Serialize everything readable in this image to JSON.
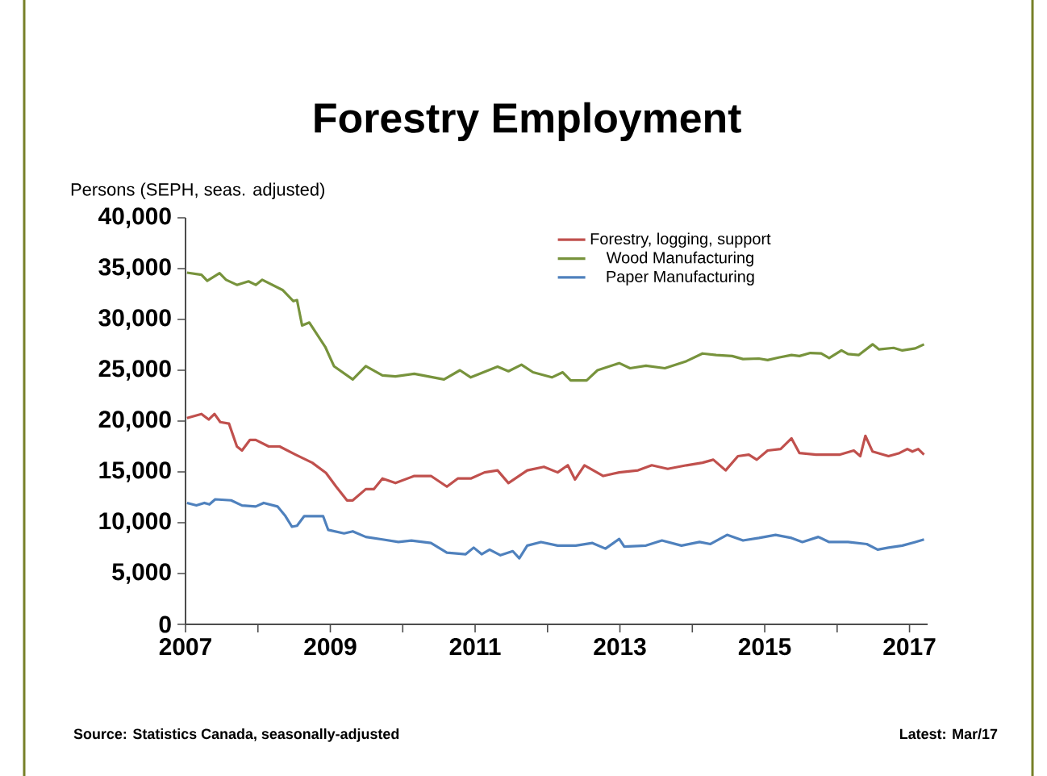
{
  "chart_data": {
    "type": "line",
    "title": "Forestry Employment",
    "ylabel": "Persons (SEPH, seas. adjusted)",
    "annotations": [
      "Source:  Statistics Canada, seasonally-adjusted",
      "Latest: Mar/17"
    ],
    "xlim": [
      2007,
      2017.25
    ],
    "ylim": [
      0,
      40000
    ],
    "xticks": [
      2007,
      {
        "value": 2008,
        "label": null
      },
      2009,
      {
        "value": 2010,
        "label": null
      },
      2011,
      {
        "value": 2012,
        "label": null
      },
      2013,
      {
        "value": 2014,
        "label": null
      },
      2015,
      {
        "value": 2016,
        "label": null
      },
      2017
    ],
    "yticks": [
      {
        "value": 0,
        "label": "0"
      },
      {
        "value": 5000,
        "label": "5,000"
      },
      {
        "value": 10000,
        "label": "10,000"
      },
      {
        "value": 15000,
        "label": "15,000"
      },
      {
        "value": 20000,
        "label": "20,000"
      },
      {
        "value": 25000,
        "label": "25,000"
      },
      {
        "value": 30000,
        "label": "30,000"
      },
      {
        "value": 35000,
        "label": "35,000"
      },
      {
        "value": 40000,
        "label": "40,000"
      }
    ],
    "grid": false,
    "legend": "top right",
    "line_style": "solid",
    "series": [
      {
        "name": "Forestry, logging, support",
        "color": "#c0504d",
        "x": [
          2007.02,
          2007.22,
          2007.32,
          2007.4,
          2007.48,
          2007.6,
          2007.71,
          2007.78,
          2007.89,
          2007.97,
          2008.15,
          2008.3,
          2008.52,
          2008.75,
          2008.94,
          2009.08,
          2009.23,
          2009.31,
          2009.49,
          2009.6,
          2009.72,
          2009.9,
          2010.16,
          2010.39,
          2010.61,
          2010.76,
          2010.94,
          2011.13,
          2011.31,
          2011.46,
          2011.72,
          2011.95,
          2012.14,
          2012.28,
          2012.38,
          2012.51,
          2012.77,
          2012.99,
          2013.25,
          2013.44,
          2013.66,
          2013.92,
          2014.14,
          2014.29,
          2014.46,
          2014.63,
          2014.78,
          2014.89,
          2015.04,
          2015.22,
          2015.37,
          2015.48,
          2015.71,
          2016.04,
          2016.23,
          2016.32,
          2016.39,
          2016.49,
          2016.71,
          2016.86,
          2016.97,
          2017.04,
          2017.12,
          2017.2
        ],
        "values": [
          20300,
          20700,
          20150,
          20700,
          19900,
          19750,
          17500,
          17100,
          18150,
          18150,
          17500,
          17500,
          16700,
          15900,
          14900,
          13550,
          12200,
          12200,
          13300,
          13300,
          14350,
          13900,
          14600,
          14600,
          13550,
          14350,
          14350,
          14950,
          15150,
          13900,
          15150,
          15500,
          14950,
          15650,
          14250,
          15650,
          14600,
          14950,
          15150,
          15650,
          15300,
          15650,
          15900,
          16200,
          15150,
          16550,
          16700,
          16200,
          17100,
          17250,
          18300,
          16850,
          16700,
          16700,
          17100,
          16550,
          18550,
          17000,
          16550,
          16850,
          17250,
          17000,
          17250,
          16700
        ]
      },
      {
        "name": "Wood Manufacturing",
        "color": "#77933c",
        "x": [
          2007.02,
          2007.22,
          2007.3,
          2007.47,
          2007.56,
          2007.71,
          2007.87,
          2007.97,
          2008.06,
          2008.34,
          2008.49,
          2008.54,
          2008.61,
          2008.71,
          2008.93,
          2009.05,
          2009.31,
          2009.49,
          2009.72,
          2009.9,
          2010.16,
          2010.57,
          2010.79,
          2010.94,
          2011.31,
          2011.46,
          2011.64,
          2011.8,
          2012.06,
          2012.21,
          2012.32,
          2012.54,
          2012.69,
          2012.99,
          2013.14,
          2013.36,
          2013.62,
          2013.92,
          2014.14,
          2014.33,
          2014.55,
          2014.7,
          2014.92,
          2015.04,
          2015.19,
          2015.37,
          2015.48,
          2015.63,
          2015.78,
          2015.89,
          2016.06,
          2016.15,
          2016.3,
          2016.49,
          2016.58,
          2016.78,
          2016.9,
          2017.08,
          2017.2
        ],
        "values": [
          34600,
          34400,
          33800,
          34550,
          33900,
          33400,
          33750,
          33400,
          33900,
          32900,
          31800,
          31900,
          29400,
          29700,
          27300,
          25400,
          24100,
          25400,
          24500,
          24400,
          24650,
          24100,
          25000,
          24300,
          25350,
          24900,
          25550,
          24800,
          24300,
          24800,
          24000,
          24000,
          25000,
          25700,
          25200,
          25450,
          25200,
          25900,
          26650,
          26500,
          26400,
          26100,
          26150,
          26000,
          26250,
          26500,
          26400,
          26700,
          26650,
          26200,
          26950,
          26600,
          26500,
          27550,
          27050,
          27200,
          26950,
          27150,
          27550
        ]
      },
      {
        "name": "Paper Manufacturing",
        "color": "#4f81bd",
        "x": [
          2007.02,
          2007.15,
          2007.26,
          2007.33,
          2007.41,
          2007.63,
          2007.78,
          2007.97,
          2008.08,
          2008.27,
          2008.38,
          2008.47,
          2008.54,
          2008.64,
          2008.9,
          2008.97,
          2009.19,
          2009.31,
          2009.49,
          2009.72,
          2009.94,
          2010.12,
          2010.39,
          2010.61,
          2010.87,
          2010.98,
          2011.09,
          2011.2,
          2011.35,
          2011.52,
          2011.61,
          2011.72,
          2011.91,
          2012.14,
          2012.39,
          2012.62,
          2012.8,
          2012.99,
          2013.06,
          2013.36,
          2013.58,
          2013.85,
          2014.1,
          2014.25,
          2014.48,
          2014.7,
          2014.92,
          2015.15,
          2015.37,
          2015.52,
          2015.74,
          2015.89,
          2016.15,
          2016.41,
          2016.56,
          2016.71,
          2016.9,
          2017.08,
          2017.2
        ],
        "values": [
          11950,
          11700,
          11950,
          11800,
          12300,
          12200,
          11700,
          11600,
          11950,
          11600,
          10650,
          9600,
          9700,
          10650,
          10650,
          9300,
          8950,
          9150,
          8600,
          8350,
          8100,
          8250,
          8000,
          7050,
          6900,
          7550,
          6900,
          7350,
          6800,
          7200,
          6500,
          7750,
          8100,
          7750,
          7750,
          8000,
          7450,
          8400,
          7650,
          7750,
          8250,
          7750,
          8100,
          7900,
          8800,
          8250,
          8500,
          8800,
          8500,
          8100,
          8600,
          8100,
          8100,
          7900,
          7350,
          7550,
          7750,
          8100,
          8350
        ]
      }
    ]
  }
}
